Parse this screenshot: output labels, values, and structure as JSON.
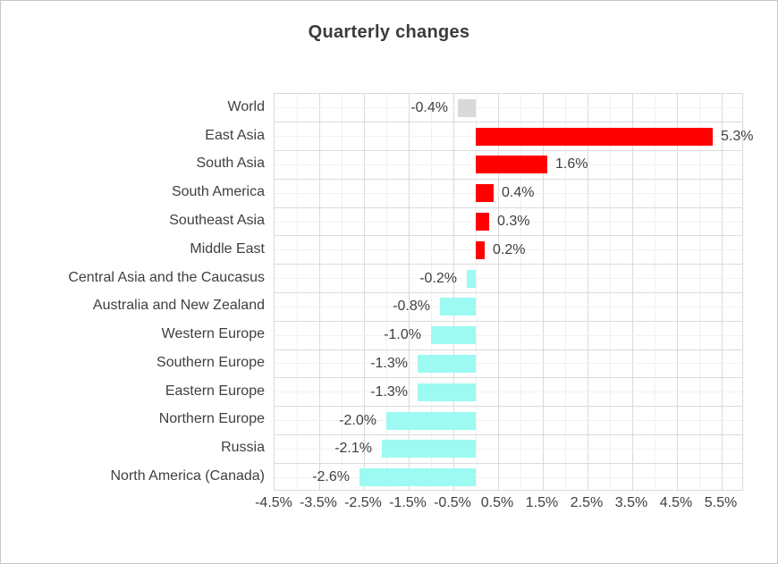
{
  "title": "Quarterly changes",
  "colors": {
    "positive_bar": "#FF0000",
    "negative_bar": "#9CFAF2",
    "neutral_bar": "#D9D9D9",
    "text": "#3F3F3F",
    "grid_major": "#DBDBDB",
    "grid_minor": "#F1F1F1",
    "canvas_border": "#C8C8C8"
  },
  "chart_data": {
    "type": "bar",
    "orientation": "horizontal",
    "title": "Quarterly changes",
    "categories": [
      "World",
      "East Asia",
      "South Asia",
      "South America",
      "Southeast Asia",
      "Middle East",
      "Central Asia and the Caucasus",
      "Australia and New Zealand",
      "Western Europe",
      "Southern Europe",
      "Eastern Europe",
      "Northern Europe",
      "Russia",
      "North America (Canada)"
    ],
    "values": [
      -0.4,
      5.3,
      1.6,
      0.4,
      0.3,
      0.2,
      -0.2,
      -0.8,
      -1.0,
      -1.3,
      -1.3,
      -2.0,
      -2.1,
      -2.6
    ],
    "data_labels": [
      "-0.4%",
      "5.3%",
      "1.6%",
      "0.4%",
      "0.3%",
      "0.2%",
      "-0.2%",
      "-0.8%",
      "-1.0%",
      "-1.3%",
      "-1.3%",
      "-2.0%",
      "-2.1%",
      "-2.6%"
    ],
    "bar_colors": [
      "#D9D9D9",
      "#FF0000",
      "#FF0000",
      "#FF0000",
      "#FF0000",
      "#FF0000",
      "#9CFAF2",
      "#9CFAF2",
      "#9CFAF2",
      "#9CFAF2",
      "#9CFAF2",
      "#9CFAF2",
      "#9CFAF2",
      "#9CFAF2"
    ],
    "xlabel": "",
    "ylabel": "",
    "xlim": [
      -4.5,
      6.0
    ],
    "x_tick_values": [
      -4.5,
      -3.5,
      -2.5,
      -1.5,
      -0.5,
      0.5,
      1.5,
      2.5,
      3.5,
      4.5,
      5.5
    ],
    "x_tick_labels": [
      "-4.5%",
      "-3.5%",
      "-2.5%",
      "-1.5%",
      "-0.5%",
      "0.5%",
      "1.5%",
      "2.5%",
      "3.5%",
      "4.5%",
      "5.5%"
    ],
    "grid": "major and minor gridlines on both axes",
    "minor_unit_x": 0.5,
    "major_unit_x": 1.0,
    "legend": "none"
  }
}
